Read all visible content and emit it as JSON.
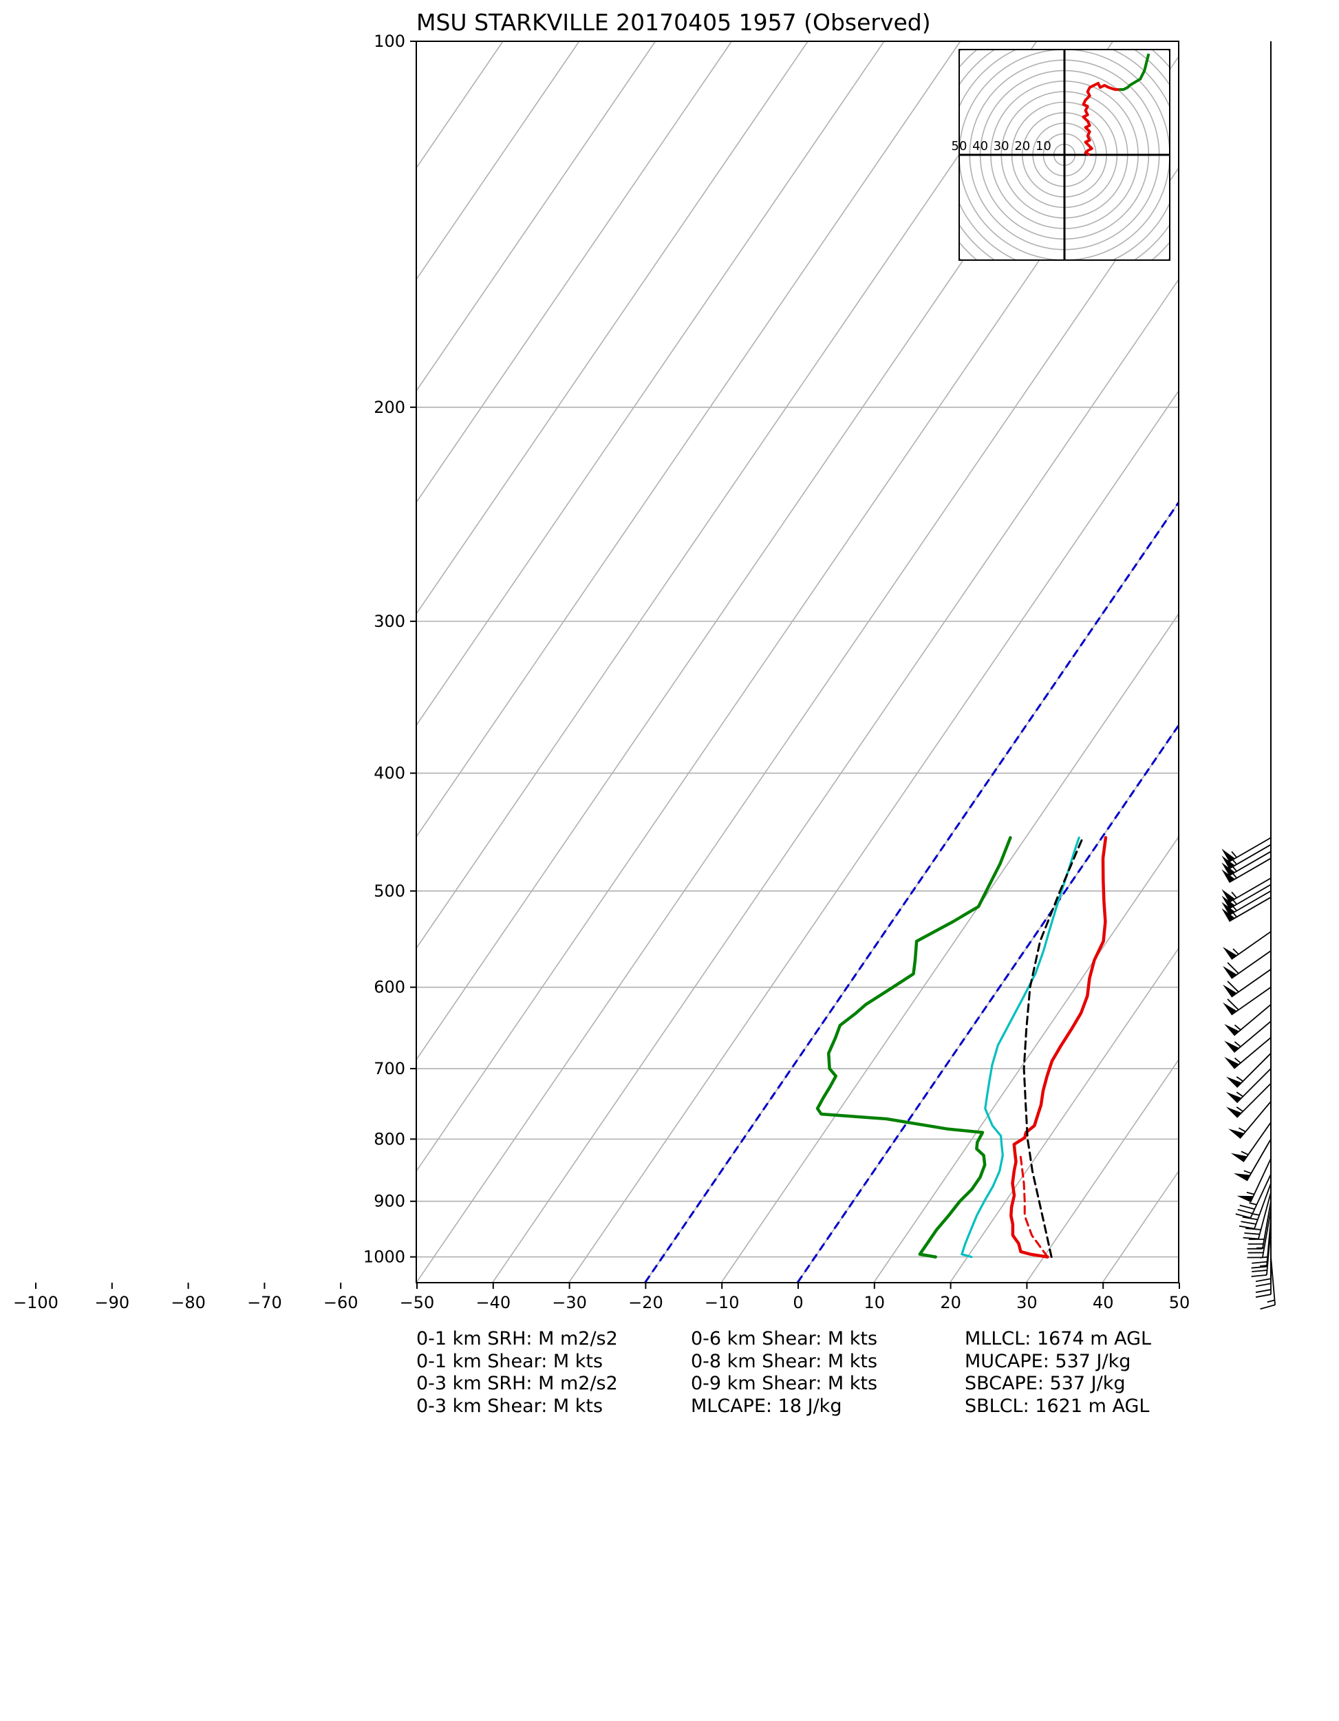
{
  "title": "MSU STARKVILLE 20170405 1957   (Observed)",
  "chart_data": {
    "type": "skew-t log-p",
    "title": "MSU STARKVILLE 20170405 1957   (Observed)",
    "x_ticks": [
      "−100",
      "−90",
      "−80",
      "−70",
      "−60",
      "−50",
      "−40",
      "−30",
      "−20",
      "−10",
      "0",
      "10",
      "20",
      "30",
      "40",
      "50"
    ],
    "x_tick_values": [
      -100,
      -90,
      -80,
      -70,
      -60,
      -50,
      -40,
      -30,
      -20,
      -10,
      0,
      10,
      20,
      30,
      40,
      50
    ],
    "y_ticks": [
      "100",
      "200",
      "300",
      "400",
      "500",
      "600",
      "700",
      "800",
      "900",
      "1000"
    ],
    "y_tick_values": [
      100,
      200,
      300,
      400,
      500,
      600,
      700,
      800,
      900,
      1000
    ],
    "xlim": [
      -50,
      50
    ],
    "ylim": [
      1050,
      100
    ],
    "y_scale": "log",
    "grid": true,
    "series": [
      {
        "role": "temperature",
        "color": "#e60000",
        "style": "solid",
        "points": [
          [
            1000,
            30.5
          ],
          [
            995,
            28.0
          ],
          [
            990,
            26.5
          ],
          [
            975,
            25.5
          ],
          [
            960,
            24.0
          ],
          [
            940,
            23.0
          ],
          [
            925,
            22.0
          ],
          [
            910,
            21.3
          ],
          [
            890,
            20.6
          ],
          [
            870,
            19.3
          ],
          [
            850,
            18.4
          ],
          [
            835,
            17.8
          ],
          [
            820,
            16.8
          ],
          [
            808,
            16.0
          ],
          [
            798,
            16.8
          ],
          [
            790,
            16.5
          ],
          [
            780,
            17.0
          ],
          [
            765,
            16.5
          ],
          [
            750,
            16.0
          ],
          [
            730,
            15.0
          ],
          [
            710,
            14.2
          ],
          [
            690,
            13.5
          ],
          [
            670,
            13.3
          ],
          [
            650,
            13.2
          ],
          [
            630,
            13.0
          ],
          [
            610,
            12.3
          ],
          [
            590,
            11.0
          ],
          [
            570,
            10.0
          ],
          [
            550,
            9.5
          ],
          [
            530,
            8.0
          ],
          [
            510,
            6.0
          ],
          [
            490,
            4.0
          ],
          [
            470,
            2.0
          ],
          [
            452,
            0.5
          ]
        ]
      },
      {
        "role": "parcel-virtual-temperature",
        "color": "#e60000",
        "style": "dashed",
        "points": [
          [
            1000,
            30.5
          ],
          [
            960,
            26.5
          ],
          [
            925,
            23.8
          ],
          [
            900,
            22.5
          ],
          [
            870,
            20.8
          ],
          [
            850,
            19.5
          ],
          [
            835,
            18.5
          ],
          [
            820,
            17.5
          ]
        ]
      },
      {
        "role": "dewpoint",
        "color": "#008000",
        "style": "solid",
        "points": [
          [
            1000,
            15.8
          ],
          [
            995,
            13.5
          ],
          [
            975,
            13.5
          ],
          [
            950,
            13.5
          ],
          [
            925,
            13.8
          ],
          [
            900,
            14.0
          ],
          [
            880,
            14.5
          ],
          [
            860,
            14.5
          ],
          [
            840,
            14.0
          ],
          [
            825,
            13.0
          ],
          [
            815,
            11.5
          ],
          [
            805,
            11.0
          ],
          [
            790,
            10.8
          ],
          [
            785,
            6.0
          ],
          [
            770,
            -3.0
          ],
          [
            763,
            -12.0
          ],
          [
            755,
            -13.0
          ],
          [
            740,
            -13.2
          ],
          [
            725,
            -13.3
          ],
          [
            710,
            -13.5
          ],
          [
            700,
            -15.0
          ],
          [
            680,
            -16.5
          ],
          [
            660,
            -17.0
          ],
          [
            645,
            -17.5
          ],
          [
            630,
            -16.5
          ],
          [
            620,
            -16.0
          ],
          [
            600,
            -14.0
          ],
          [
            585,
            -12.5
          ],
          [
            570,
            -13.5
          ],
          [
            550,
            -15.0
          ],
          [
            530,
            -12.0
          ],
          [
            515,
            -10.0
          ],
          [
            495,
            -10.5
          ],
          [
            475,
            -11.0
          ],
          [
            452,
            -12.0
          ]
        ]
      },
      {
        "role": "wet-bulb",
        "color": "#00bfbf",
        "style": "solid",
        "points": [
          [
            1000,
            20.5
          ],
          [
            995,
            19.0
          ],
          [
            975,
            18.5
          ],
          [
            950,
            18.0
          ],
          [
            925,
            17.5
          ],
          [
            900,
            17.2
          ],
          [
            875,
            17.0
          ],
          [
            850,
            16.5
          ],
          [
            825,
            15.5
          ],
          [
            810,
            14.5
          ],
          [
            795,
            13.5
          ],
          [
            780,
            11.5
          ],
          [
            770,
            10.5
          ],
          [
            755,
            9.0
          ],
          [
            735,
            8.0
          ],
          [
            715,
            7.0
          ],
          [
            695,
            6.0
          ],
          [
            670,
            5.0
          ],
          [
            640,
            4.5
          ],
          [
            610,
            4.0
          ],
          [
            585,
            3.5
          ],
          [
            560,
            2.5
          ],
          [
            540,
            1.5
          ],
          [
            520,
            0.5
          ],
          [
            500,
            -0.5
          ],
          [
            480,
            -1.5
          ],
          [
            465,
            -2.3
          ],
          [
            452,
            -3.0
          ]
        ]
      },
      {
        "role": "parcel-path",
        "color": "#000000",
        "style": "dashed",
        "points": [
          [
            1000,
            31.0
          ],
          [
            950,
            27.8
          ],
          [
            900,
            24.4
          ],
          [
            850,
            20.8
          ],
          [
            818,
            18.6
          ],
          [
            800,
            17.3
          ],
          [
            750,
            14.0
          ],
          [
            700,
            10.5
          ],
          [
            650,
            7.3
          ],
          [
            600,
            4.0
          ],
          [
            550,
            1.2
          ],
          [
            500,
            -0.7
          ],
          [
            452,
            -2.5
          ]
        ]
      },
      {
        "role": "reference-isotherm",
        "color": "#0000cc",
        "style": "dashed",
        "temperature": 0
      },
      {
        "role": "reference-isotherm",
        "color": "#0000cc",
        "style": "dashed",
        "temperature": -20
      }
    ],
    "wind_barbs": {
      "pressures": [
        452,
        458,
        464,
        470,
        488,
        494,
        500,
        506,
        540,
        560,
        580,
        600,
        620,
        640,
        660,
        680,
        700,
        720,
        745,
        775,
        800,
        830,
        855,
        870,
        885,
        900,
        915,
        930,
        945,
        960,
        980,
        1000
      ],
      "speed_kts": [
        55,
        55,
        55,
        55,
        55,
        55,
        55,
        55,
        55,
        60,
        60,
        60,
        55,
        55,
        55,
        55,
        55,
        55,
        55,
        55,
        55,
        55,
        35,
        35,
        30,
        30,
        25,
        25,
        25,
        20,
        20,
        15
      ],
      "from_deg": [
        240,
        240,
        240,
        240,
        240,
        240,
        240,
        240,
        235,
        235,
        235,
        235,
        230,
        230,
        230,
        225,
        225,
        225,
        220,
        215,
        210,
        205,
        205,
        200,
        195,
        190,
        190,
        185,
        185,
        180,
        180,
        175
      ],
      "color": "#000000"
    },
    "hodograph": {
      "ring_labels": [
        "50",
        "40",
        "30",
        "20",
        "10"
      ],
      "ring_values": [
        50,
        40,
        30,
        20,
        10
      ],
      "max_speed_kts": 50,
      "colors": [
        "#e60000",
        "#008000"
      ],
      "segments": [
        {
          "color": "#e60000",
          "uv": [
            [
              12,
              0
            ],
            [
              10,
              1
            ],
            [
              11,
              2
            ],
            [
              13,
              3
            ],
            [
              12,
              4
            ],
            [
              10,
              6
            ],
            [
              12,
              7
            ],
            [
              11,
              9
            ],
            [
              12,
              11
            ],
            [
              10,
              13
            ],
            [
              12,
              14
            ],
            [
              11,
              16
            ],
            [
              9,
              18
            ],
            [
              11,
              19
            ],
            [
              10,
              21
            ],
            [
              11,
              23
            ],
            [
              9,
              24
            ],
            [
              10,
              26
            ],
            [
              12,
              28
            ],
            [
              11,
              30
            ],
            [
              12,
              32
            ],
            [
              14,
              33
            ],
            [
              16,
              34
            ],
            [
              17,
              32
            ],
            [
              19,
              33
            ],
            [
              21,
              32
            ],
            [
              24,
              31
            ],
            [
              26,
              31
            ]
          ]
        },
        {
          "color": "#008000",
          "uv": [
            [
              26,
              31
            ],
            [
              28,
              31
            ],
            [
              30,
              32
            ],
            [
              31,
              33
            ],
            [
              36,
              36
            ],
            [
              38,
              40
            ],
            [
              39,
              44
            ],
            [
              40,
              48
            ]
          ]
        }
      ]
    }
  },
  "stats": {
    "col1": [
      "0-1 km SRH: M m2/s2",
      "0-1 km Shear: M kts",
      "0-3 km SRH: M m2/s2",
      "0-3 km Shear: M kts"
    ],
    "col2": [
      "0-6 km Shear: M kts",
      "0-8 km Shear: M kts",
      "0-9 km Shear: M kts",
      "MLCAPE: 18 J/kg"
    ],
    "col3": [
      "MLLCL: 1674 m AGL",
      "MUCAPE: 537 J/kg",
      "SBCAPE: 537 J/kg",
      "SBLCL: 1621 m AGL"
    ]
  }
}
